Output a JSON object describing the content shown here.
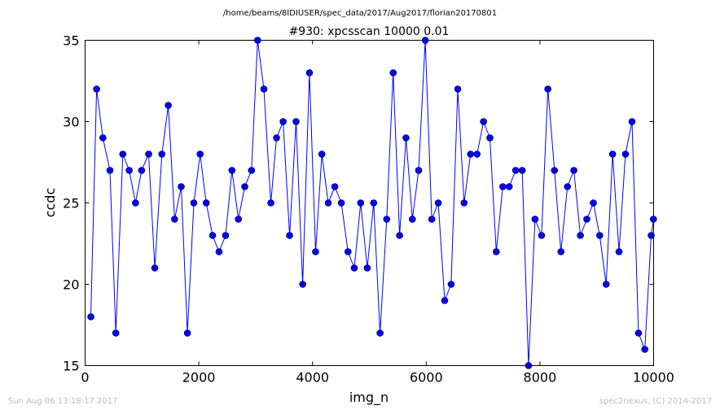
{
  "chart_data": {
    "type": "line",
    "suptitle": "/home/beams/8IDIUSER/spec_data/2017/Aug2017/florian20170801",
    "title": "#930: xpcsscan 10000 0.01",
    "xlabel": "img_n",
    "ylabel": "ccdc",
    "xlim": [
      0,
      10000
    ],
    "ylim": [
      15,
      35
    ],
    "xticks": [
      0,
      2000,
      4000,
      6000,
      8000,
      10000
    ],
    "yticks": [
      15,
      20,
      25,
      30,
      35
    ],
    "xtick_labels": [
      "0",
      "2000",
      "4000",
      "6000",
      "8000",
      "10000"
    ],
    "ytick_labels": [
      "15",
      "20",
      "25",
      "30",
      "35"
    ],
    "grid": false,
    "legend": "none",
    "line_color": "#0000ff",
    "marker": "circle",
    "series": [
      {
        "x": [
          101,
          202,
          313,
          437,
          540,
          663,
          776,
          887,
          994,
          1118,
          1226,
          1351,
          1463,
          1574,
          1690,
          1800,
          1912,
          2023,
          2130,
          2242,
          2356,
          2471,
          2583,
          2696,
          2808,
          2927,
          3035,
          3145,
          3267,
          3367,
          3483,
          3597,
          3711,
          3827,
          3946,
          4054,
          4165,
          4277,
          4392,
          4507,
          4624,
          4735,
          4847,
          4963,
          5076,
          5188,
          5305,
          5419,
          5532,
          5644,
          5756,
          5867,
          5983,
          6098,
          6212,
          6325,
          6439,
          6555,
          6666,
          6780,
          6894,
          7008,
          7120,
          7232,
          7347,
          7460,
          7573,
          7689,
          7800,
          7914,
          8029,
          8140,
          8256,
          8370,
          8484,
          8597,
          8712,
          8825,
          8940,
          9052,
          9165,
          9279,
          9391,
          9505,
          9620,
          9734,
          9845,
          9957,
          9997
        ],
        "y": [
          18,
          32,
          29,
          27,
          17,
          28,
          27,
          25,
          27,
          28,
          21,
          28,
          31,
          24,
          26,
          17,
          25,
          28,
          25,
          23,
          22,
          23,
          27,
          24,
          26,
          27,
          35,
          32,
          25,
          29,
          30,
          23,
          30,
          20,
          33,
          22,
          28,
          25,
          26,
          25,
          22,
          21,
          25,
          21,
          25,
          17,
          24,
          33,
          23,
          29,
          24,
          27,
          35,
          24,
          25,
          19,
          20,
          32,
          25,
          28,
          28,
          30,
          29,
          22,
          26,
          26,
          27,
          27,
          15,
          24,
          23,
          32,
          27,
          22,
          26,
          27,
          23,
          24,
          25,
          23,
          20,
          28,
          22,
          28,
          30,
          17,
          16,
          23,
          24
        ]
      }
    ]
  },
  "footer": {
    "timestamp": "Sun Aug 06 13:18:17 2017",
    "credit": "spec2nexus, (C) 2014-2017"
  }
}
